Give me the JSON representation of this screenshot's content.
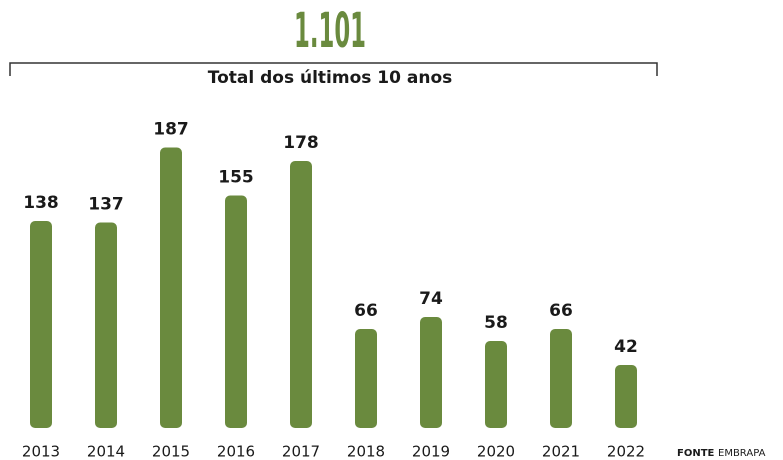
{
  "chart_data": {
    "type": "bar",
    "title": "1.101",
    "subtitle": "Total dos últimos 10 anos",
    "categories": [
      "2013",
      "2014",
      "2015",
      "2016",
      "2017",
      "2018",
      "2019",
      "2020",
      "2021",
      "2022"
    ],
    "values": [
      138,
      137,
      187,
      155,
      178,
      66,
      74,
      58,
      66,
      42
    ],
    "color": "#6a8a3e",
    "source_label": "FONTE",
    "source": "EMBRAPA"
  }
}
